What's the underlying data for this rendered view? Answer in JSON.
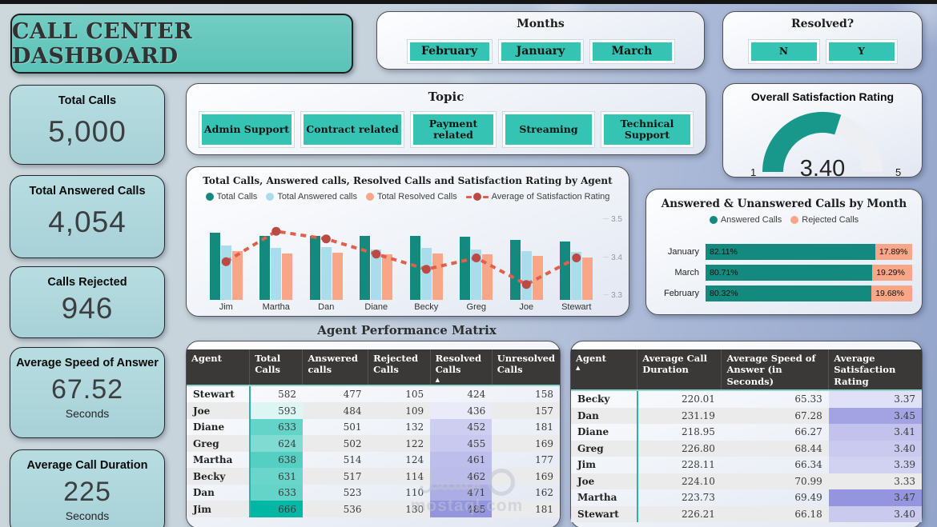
{
  "title": "CALL CENTER DASHBOARD",
  "slicers": {
    "months": {
      "title": "Months",
      "options": [
        "February",
        "January",
        "March"
      ]
    },
    "resolved": {
      "title": "Resolved?",
      "options": [
        "N",
        "Y"
      ]
    },
    "topic": {
      "title": "Topic",
      "options": [
        "Admin Support",
        "Contract related",
        "Payment related",
        "Streaming",
        "Technical Support"
      ]
    }
  },
  "kpis": [
    {
      "label": "Total Calls",
      "value": "5,000"
    },
    {
      "label": "Total Answered Calls",
      "value": "4,054"
    },
    {
      "label": "Calls Rejected",
      "value": "946"
    },
    {
      "label": "Average Speed of Answer",
      "value": "67.52",
      "unit": "Seconds"
    },
    {
      "label": "Average Call Duration",
      "value": "225",
      "unit": "Seconds"
    }
  ],
  "chart_data": [
    {
      "type": "combo",
      "title": "Total Calls, Answered calls, Resolved Calls and Satisfaction Rating by Agent",
      "categories": [
        "Jim",
        "Martha",
        "Dan",
        "Diane",
        "Becky",
        "Greg",
        "Joe",
        "Stewart"
      ],
      "series": [
        {
          "name": "Total Calls",
          "kind": "bar",
          "color": "#14897E",
          "values": [
            666,
            638,
            633,
            633,
            631,
            624,
            593,
            582
          ]
        },
        {
          "name": "Total Answered calls",
          "kind": "bar",
          "color": "#A9DDEC",
          "values": [
            536,
            514,
            523,
            501,
            517,
            502,
            484,
            477
          ]
        },
        {
          "name": "Total Resolved Calls",
          "kind": "bar",
          "color": "#F8A687",
          "values": [
            485,
            461,
            471,
            452,
            462,
            455,
            436,
            424
          ]
        },
        {
          "name": "Average of Satisfaction Rating",
          "kind": "line",
          "color": "#E0604C",
          "point_color": "#BC4A44",
          "values": [
            3.39,
            3.47,
            3.45,
            3.41,
            3.37,
            3.4,
            3.33,
            3.4
          ]
        }
      ],
      "y2_ticks": [
        "3.5",
        "3.4",
        "3.3"
      ],
      "y2_range": [
        3.3,
        3.5
      ],
      "legend_position": "top"
    },
    {
      "type": "bar",
      "orientation": "horizontal",
      "stacked_percent": true,
      "title": "Answered & Unanswered Calls by Month",
      "categories": [
        "January",
        "March",
        "February"
      ],
      "series": [
        {
          "name": "Answered Calls",
          "color": "#14897E",
          "values": [
            82.11,
            80.71,
            80.32
          ],
          "labels": [
            "82.11%",
            "80.71%",
            "80.32%"
          ]
        },
        {
          "name": "Rejected Calls",
          "color": "#F8A687",
          "values": [
            17.89,
            19.29,
            19.68
          ],
          "labels": [
            "17.89%",
            "19.29%",
            "19.68%"
          ]
        }
      ],
      "legend_position": "top"
    },
    {
      "type": "gauge",
      "title": "Overall Satisfaction Rating",
      "value": 3.4,
      "display_value": "3.40",
      "min": 1,
      "max": 5,
      "min_label": "1",
      "max_label": "5",
      "color": "#17988B"
    }
  ],
  "matrix": {
    "section_title": "Agent Performance Matrix",
    "left_table": {
      "headers": [
        "Agent",
        "Total Calls",
        "Answered calls",
        "Rejected Calls",
        "Resolved Calls",
        "Unresolved Calls"
      ],
      "sorted_by": {
        "column": "Resolved Calls",
        "direction": "asc"
      },
      "rows": [
        [
          "Stewart",
          582,
          477,
          105,
          424,
          158
        ],
        [
          "Joe",
          593,
          484,
          109,
          436,
          157
        ],
        [
          "Diane",
          633,
          501,
          132,
          452,
          181
        ],
        [
          "Greg",
          624,
          502,
          122,
          455,
          169
        ],
        [
          "Martha",
          638,
          514,
          124,
          461,
          177
        ],
        [
          "Becky",
          631,
          517,
          114,
          462,
          169
        ],
        [
          "Dan",
          633,
          523,
          110,
          471,
          162
        ],
        [
          "Jim",
          666,
          536,
          130,
          485,
          181
        ]
      ],
      "heat": {
        "teal_column": 1,
        "purple_column": 4
      }
    },
    "right_table": {
      "headers": [
        "Agent",
        "Average Call Duration",
        "Average Speed of Answer (in Seconds)",
        "Average Satisfaction Rating"
      ],
      "sorted_by": {
        "column": "Agent",
        "direction": "asc"
      },
      "rows": [
        [
          "Becky",
          "220.01",
          "65.33",
          "3.37"
        ],
        [
          "Dan",
          "231.19",
          "67.28",
          "3.45"
        ],
        [
          "Diane",
          "218.95",
          "66.27",
          "3.41"
        ],
        [
          "Greg",
          "226.80",
          "68.44",
          "3.40"
        ],
        [
          "Jim",
          "228.11",
          "66.34",
          "3.39"
        ],
        [
          "Joe",
          "224.10",
          "70.99",
          "3.33"
        ],
        [
          "Martha",
          "223.73",
          "69.49",
          "3.47"
        ],
        [
          "Stewart",
          "226.21",
          "66.18",
          "3.40"
        ]
      ],
      "heat": {
        "purple_column": 3
      }
    }
  },
  "watermark": {
    "logo": "مستقل",
    "site": "mostaql.com"
  },
  "colors": {
    "accent_teal": "#35C4B4",
    "banner_teal": "#63C7BD",
    "kpi_card": "#AFD8DC",
    "bar_teal": "#14897E",
    "bar_blue": "#A9DDEC",
    "bar_orange": "#F8A687",
    "line_red": "#E0604C",
    "dot_red": "#BC4A44",
    "gauge_teal": "#17988B",
    "heat_teal_max": "#00B7A4",
    "heat_purple_max": "#9494DF",
    "table_header_bg": "#3A3937"
  }
}
